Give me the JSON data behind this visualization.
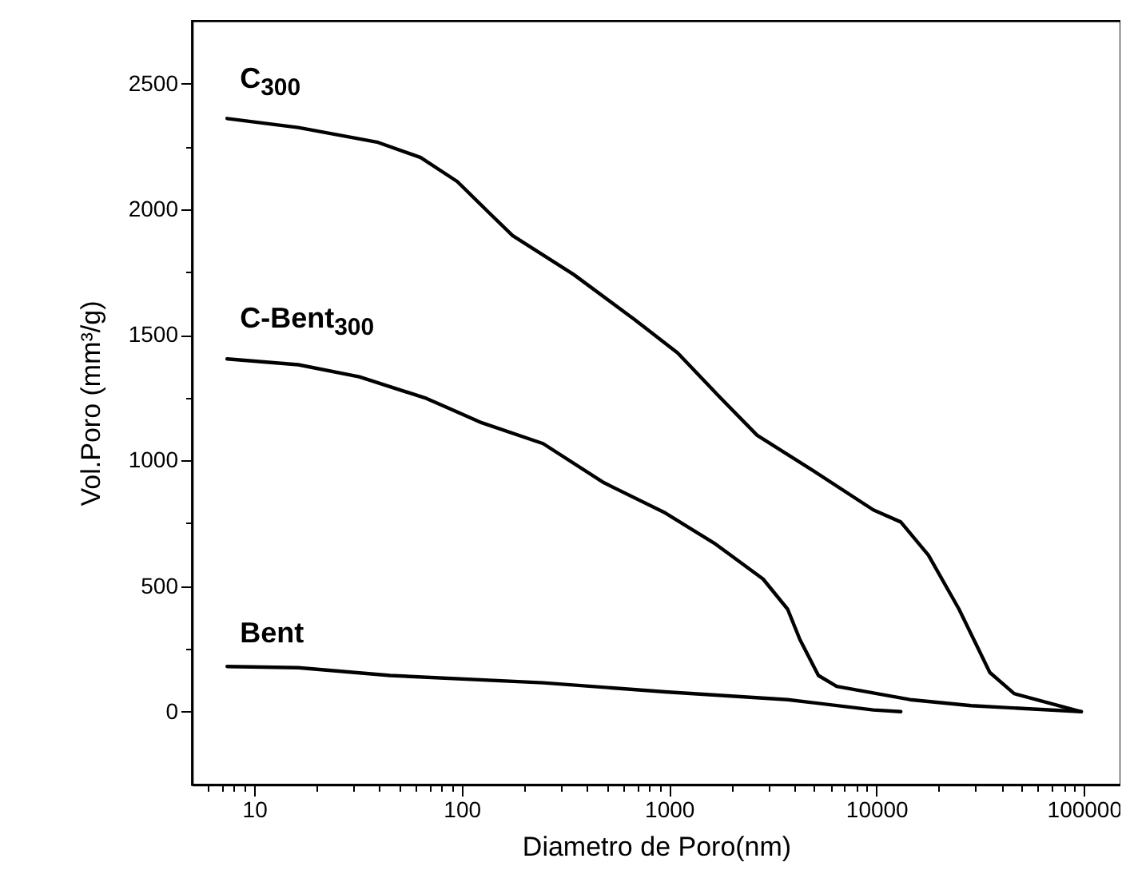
{
  "chart_data": {
    "type": "line",
    "xlabel": "Diametro de Poro(nm)",
    "ylabel": "Vol.Poro (mm³/g)",
    "log": "x",
    "grid": false,
    "line_style": "solid",
    "xlim": [
      5,
      150000
    ],
    "xticks": [
      {
        "value": 6,
        "label": null
      },
      {
        "value": 7,
        "label": null
      },
      {
        "value": 8,
        "label": null
      },
      {
        "value": 9,
        "label": null
      },
      10,
      {
        "value": 20,
        "label": null
      },
      {
        "value": 30,
        "label": null
      },
      {
        "value": 40,
        "label": null
      },
      {
        "value": 50,
        "label": null
      },
      {
        "value": 60,
        "label": null
      },
      {
        "value": 70,
        "label": null
      },
      {
        "value": 80,
        "label": null
      },
      {
        "value": 90,
        "label": null
      },
      100,
      {
        "value": 200,
        "label": null
      },
      {
        "value": 300,
        "label": null
      },
      {
        "value": 400,
        "label": null
      },
      {
        "value": 500,
        "label": null
      },
      {
        "value": 600,
        "label": null
      },
      {
        "value": 700,
        "label": null
      },
      {
        "value": 800,
        "label": null
      },
      {
        "value": 900,
        "label": null
      },
      1000,
      {
        "value": 2000,
        "label": null
      },
      {
        "value": 3000,
        "label": null
      },
      {
        "value": 4000,
        "label": null
      },
      {
        "value": 5000,
        "label": null
      },
      {
        "value": 6000,
        "label": null
      },
      {
        "value": 7000,
        "label": null
      },
      {
        "value": 8000,
        "label": null
      },
      {
        "value": 9000,
        "label": null
      },
      10000,
      {
        "value": 20000,
        "label": null
      },
      {
        "value": 30000,
        "label": null
      },
      {
        "value": 40000,
        "label": null
      },
      {
        "value": 50000,
        "label": null
      },
      {
        "value": 60000,
        "label": null
      },
      {
        "value": 70000,
        "label": null
      },
      {
        "value": 80000,
        "label": null
      },
      {
        "value": 90000,
        "label": null
      },
      100000
    ],
    "ylim": [
      -290,
      2750
    ],
    "yticks": [
      0,
      {
        "value": 250,
        "label": null
      },
      500,
      {
        "value": 750,
        "label": null
      },
      1000,
      {
        "value": 1250,
        "label": null
      },
      1500,
      {
        "value": 1750,
        "label": null
      },
      2000,
      {
        "value": 2250,
        "label": null
      },
      2500
    ],
    "series": [
      {
        "name": "C$_{300}$",
        "color": "#000000",
        "x": [
          7.4,
          16.3,
          39.5,
          63.4,
          95.3,
          134,
          176,
          347,
          684,
          1100,
          1770,
          2660,
          4900,
          9660,
          13100,
          17800,
          25000,
          35200,
          46100,
          97200
        ],
        "values": [
          2361,
          2325,
          2266,
          2206,
          2110,
          1990,
          1895,
          1740,
          1560,
          1428,
          1249,
          1100,
          962,
          803,
          755,
          623,
          408,
          156,
          72,
          0
        ]
      },
      {
        "name": "C-Bent$_{300}$",
        "color": "#000000",
        "x": [
          7.4,
          16.3,
          32.1,
          67.6,
          125,
          247,
          486,
          959,
          1650,
          2840,
          3730,
          4270,
          5250,
          6430,
          14500,
          28600,
          97200
        ],
        "values": [
          1404,
          1381,
          1333,
          1247,
          1150,
          1067,
          911,
          791,
          671,
          528,
          408,
          288,
          144,
          101,
          48,
          24,
          0
        ]
      },
      {
        "name": "Bent",
        "color": "#000000",
        "x": [
          7.4,
          16.3,
          45.2,
          247,
          959,
          3730,
          9660,
          13100
        ],
        "values": [
          180,
          175,
          144,
          115,
          79,
          48,
          7,
          0
        ]
      }
    ]
  }
}
